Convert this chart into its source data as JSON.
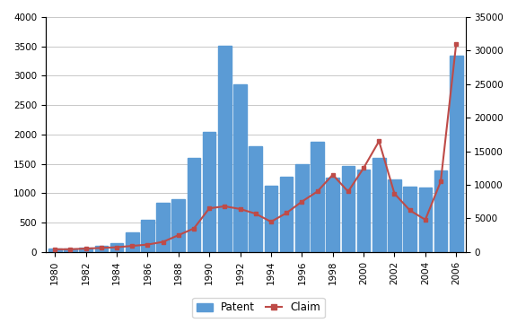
{
  "years": [
    1980,
    1981,
    1982,
    1983,
    1984,
    1985,
    1986,
    1987,
    1988,
    1989,
    1990,
    1991,
    1992,
    1993,
    1994,
    1995,
    1996,
    1997,
    1998,
    1999,
    2000,
    2001,
    2002,
    2003,
    2004,
    2005,
    2006
  ],
  "patent": [
    60,
    60,
    80,
    100,
    150,
    330,
    540,
    830,
    900,
    1600,
    2050,
    3510,
    2860,
    1800,
    1120,
    1280,
    1500,
    1880,
    1270,
    1460,
    1410,
    1600,
    1230,
    1110,
    1100,
    1380,
    3350
  ],
  "claim": [
    400,
    400,
    500,
    600,
    700,
    900,
    1100,
    1500,
    2500,
    3500,
    6500,
    6800,
    6400,
    5700,
    4500,
    5800,
    7500,
    9000,
    11500,
    9000,
    12500,
    16500,
    8700,
    6200,
    4800,
    10500,
    31000
  ],
  "bar_color": "#5B9BD5",
  "line_color": "#BE4B48",
  "left_ylim": [
    0,
    4000
  ],
  "right_ylim": [
    0,
    35000
  ],
  "left_yticks": [
    0,
    500,
    1000,
    1500,
    2000,
    2500,
    3000,
    3500,
    4000
  ],
  "right_yticks": [
    0,
    5000,
    10000,
    15000,
    20000,
    25000,
    30000,
    35000
  ],
  "legend_patent": "Patent",
  "legend_claim": "Claim",
  "plot_bg": "#FFFFFF",
  "figure_bg": "#FFFFFF",
  "grid_color": "#C8C8C8"
}
